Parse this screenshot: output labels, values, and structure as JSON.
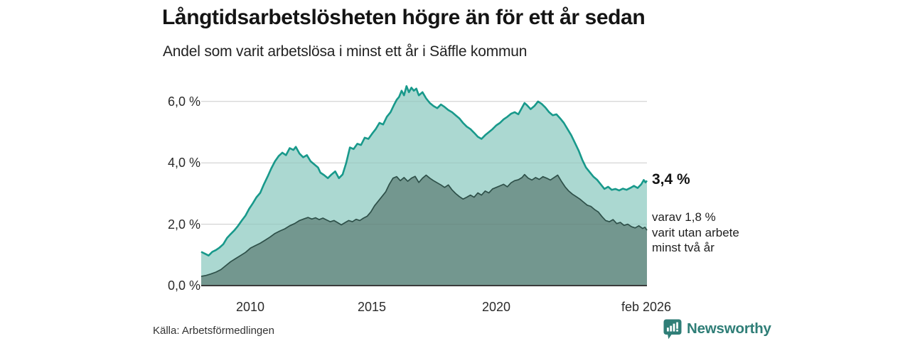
{
  "title": "Långtidsarbetslösheten högre än för ett år sedan",
  "subtitle": "Andel som varit arbetslösa i minst ett år i Säffle kommun",
  "source": "Källa: Arbetsförmedlingen",
  "branding": {
    "name": "Newsworthy",
    "icon": "newsworthy-speech-bubble-bar-chart-icon",
    "color": "#2f7e77"
  },
  "annotations": {
    "latest_value": "3,4 %",
    "secondary_lines": [
      "varav 1,8 %",
      "varit utan arbete",
      "minst två år"
    ]
  },
  "chart_data": {
    "type": "area",
    "title": "Långtidsarbetslösheten högre än för ett år sedan",
    "subtitle": "Andel som varit arbetslösa i minst ett år i Säffle kommun",
    "unit": "%",
    "grid": "horizontal",
    "legend_position": "none",
    "x_axis": {
      "domain": [
        2007.95,
        2026.08
      ],
      "tick_labels": [
        "2010",
        "2015",
        "2020",
        "feb 2026"
      ],
      "tick_years": [
        2010,
        2015,
        2020,
        2026.08
      ]
    },
    "y_axis": {
      "ylim": [
        0,
        6.6
      ],
      "tick_values": [
        0,
        2,
        4,
        6
      ],
      "tick_labels": [
        "0,0 %",
        "2,0 %",
        "4,0 %",
        "6,0 %"
      ]
    },
    "colors": {
      "outer_line": "#18998b",
      "outer_fill": "#abd8d1",
      "inner_line": "#2e5049",
      "inner_fill": "#73978f",
      "grid": "#dedede",
      "grid_overlay": "rgba(60,60,60,0.10)",
      "zero_axis": "#3b3b3b"
    },
    "series": [
      {
        "name": "Arbetslösa minst ett år",
        "latest_label": "3,4 %",
        "latest": 3.4,
        "points": [
          [
            2007.95,
            1.1
          ],
          [
            2008.1,
            1.04
          ],
          [
            2008.25,
            0.98
          ],
          [
            2008.4,
            1.1
          ],
          [
            2008.55,
            1.16
          ],
          [
            2008.7,
            1.24
          ],
          [
            2008.85,
            1.35
          ],
          [
            2009.0,
            1.55
          ],
          [
            2009.15,
            1.68
          ],
          [
            2009.3,
            1.8
          ],
          [
            2009.45,
            1.95
          ],
          [
            2009.6,
            2.12
          ],
          [
            2009.75,
            2.28
          ],
          [
            2009.9,
            2.5
          ],
          [
            2010.05,
            2.68
          ],
          [
            2010.2,
            2.88
          ],
          [
            2010.35,
            3.02
          ],
          [
            2010.5,
            3.3
          ],
          [
            2010.65,
            3.55
          ],
          [
            2010.8,
            3.82
          ],
          [
            2010.95,
            4.05
          ],
          [
            2011.1,
            4.22
          ],
          [
            2011.25,
            4.33
          ],
          [
            2011.4,
            4.25
          ],
          [
            2011.55,
            4.48
          ],
          [
            2011.7,
            4.42
          ],
          [
            2011.8,
            4.52
          ],
          [
            2011.95,
            4.3
          ],
          [
            2012.1,
            4.18
          ],
          [
            2012.25,
            4.25
          ],
          [
            2012.4,
            4.05
          ],
          [
            2012.55,
            3.95
          ],
          [
            2012.7,
            3.85
          ],
          [
            2012.8,
            3.68
          ],
          [
            2012.95,
            3.6
          ],
          [
            2013.1,
            3.5
          ],
          [
            2013.25,
            3.62
          ],
          [
            2013.4,
            3.72
          ],
          [
            2013.55,
            3.5
          ],
          [
            2013.7,
            3.62
          ],
          [
            2013.85,
            4.0
          ],
          [
            2014.0,
            4.5
          ],
          [
            2014.15,
            4.45
          ],
          [
            2014.3,
            4.62
          ],
          [
            2014.45,
            4.58
          ],
          [
            2014.6,
            4.82
          ],
          [
            2014.75,
            4.78
          ],
          [
            2014.9,
            4.95
          ],
          [
            2015.05,
            5.1
          ],
          [
            2015.2,
            5.3
          ],
          [
            2015.35,
            5.25
          ],
          [
            2015.5,
            5.5
          ],
          [
            2015.65,
            5.65
          ],
          [
            2015.8,
            5.9
          ],
          [
            2015.9,
            6.05
          ],
          [
            2016.0,
            6.15
          ],
          [
            2016.1,
            6.35
          ],
          [
            2016.2,
            6.2
          ],
          [
            2016.3,
            6.5
          ],
          [
            2016.4,
            6.3
          ],
          [
            2016.5,
            6.45
          ],
          [
            2016.6,
            6.35
          ],
          [
            2016.7,
            6.42
          ],
          [
            2016.8,
            6.2
          ],
          [
            2016.95,
            6.3
          ],
          [
            2017.1,
            6.1
          ],
          [
            2017.25,
            5.95
          ],
          [
            2017.4,
            5.85
          ],
          [
            2017.55,
            5.78
          ],
          [
            2017.7,
            5.9
          ],
          [
            2017.85,
            5.82
          ],
          [
            2018.0,
            5.72
          ],
          [
            2018.15,
            5.65
          ],
          [
            2018.3,
            5.55
          ],
          [
            2018.45,
            5.45
          ],
          [
            2018.6,
            5.3
          ],
          [
            2018.75,
            5.18
          ],
          [
            2018.9,
            5.1
          ],
          [
            2019.05,
            4.98
          ],
          [
            2019.2,
            4.85
          ],
          [
            2019.35,
            4.78
          ],
          [
            2019.5,
            4.9
          ],
          [
            2019.65,
            5.0
          ],
          [
            2019.8,
            5.1
          ],
          [
            2019.95,
            5.22
          ],
          [
            2020.1,
            5.3
          ],
          [
            2020.25,
            5.42
          ],
          [
            2020.4,
            5.5
          ],
          [
            2020.55,
            5.6
          ],
          [
            2020.7,
            5.65
          ],
          [
            2020.85,
            5.58
          ],
          [
            2021.0,
            5.8
          ],
          [
            2021.1,
            5.95
          ],
          [
            2021.2,
            5.88
          ],
          [
            2021.35,
            5.75
          ],
          [
            2021.5,
            5.85
          ],
          [
            2021.65,
            6.0
          ],
          [
            2021.8,
            5.92
          ],
          [
            2021.95,
            5.8
          ],
          [
            2022.1,
            5.65
          ],
          [
            2022.25,
            5.55
          ],
          [
            2022.4,
            5.58
          ],
          [
            2022.55,
            5.45
          ],
          [
            2022.7,
            5.3
          ],
          [
            2022.85,
            5.1
          ],
          [
            2023.0,
            4.9
          ],
          [
            2023.15,
            4.65
          ],
          [
            2023.3,
            4.4
          ],
          [
            2023.45,
            4.1
          ],
          [
            2023.6,
            3.85
          ],
          [
            2023.75,
            3.7
          ],
          [
            2023.9,
            3.55
          ],
          [
            2024.05,
            3.45
          ],
          [
            2024.2,
            3.3
          ],
          [
            2024.35,
            3.15
          ],
          [
            2024.5,
            3.22
          ],
          [
            2024.65,
            3.12
          ],
          [
            2024.8,
            3.15
          ],
          [
            2024.95,
            3.1
          ],
          [
            2025.1,
            3.16
          ],
          [
            2025.25,
            3.12
          ],
          [
            2025.4,
            3.18
          ],
          [
            2025.55,
            3.25
          ],
          [
            2025.7,
            3.18
          ],
          [
            2025.85,
            3.3
          ],
          [
            2025.95,
            3.44
          ],
          [
            2026.02,
            3.36
          ],
          [
            2026.08,
            3.42
          ]
        ]
      },
      {
        "name": "Varav utan arbete minst två år",
        "latest_label": "1,8 %",
        "latest": 1.8,
        "points": [
          [
            2007.95,
            0.3
          ],
          [
            2008.15,
            0.33
          ],
          [
            2008.35,
            0.38
          ],
          [
            2008.55,
            0.44
          ],
          [
            2008.75,
            0.52
          ],
          [
            2008.95,
            0.65
          ],
          [
            2009.15,
            0.78
          ],
          [
            2009.35,
            0.88
          ],
          [
            2009.55,
            0.98
          ],
          [
            2009.75,
            1.08
          ],
          [
            2009.95,
            1.22
          ],
          [
            2010.15,
            1.3
          ],
          [
            2010.35,
            1.38
          ],
          [
            2010.55,
            1.48
          ],
          [
            2010.75,
            1.58
          ],
          [
            2010.95,
            1.7
          ],
          [
            2011.15,
            1.78
          ],
          [
            2011.35,
            1.85
          ],
          [
            2011.55,
            1.95
          ],
          [
            2011.75,
            2.02
          ],
          [
            2011.95,
            2.12
          ],
          [
            2012.15,
            2.18
          ],
          [
            2012.3,
            2.22
          ],
          [
            2012.45,
            2.17
          ],
          [
            2012.6,
            2.21
          ],
          [
            2012.75,
            2.15
          ],
          [
            2012.9,
            2.2
          ],
          [
            2013.05,
            2.14
          ],
          [
            2013.2,
            2.08
          ],
          [
            2013.35,
            2.12
          ],
          [
            2013.5,
            2.05
          ],
          [
            2013.65,
            1.98
          ],
          [
            2013.8,
            2.05
          ],
          [
            2013.95,
            2.12
          ],
          [
            2014.1,
            2.08
          ],
          [
            2014.25,
            2.16
          ],
          [
            2014.4,
            2.12
          ],
          [
            2014.55,
            2.2
          ],
          [
            2014.7,
            2.26
          ],
          [
            2014.85,
            2.4
          ],
          [
            2015.0,
            2.6
          ],
          [
            2015.15,
            2.75
          ],
          [
            2015.3,
            2.9
          ],
          [
            2015.45,
            3.05
          ],
          [
            2015.6,
            3.3
          ],
          [
            2015.75,
            3.5
          ],
          [
            2015.9,
            3.55
          ],
          [
            2016.05,
            3.42
          ],
          [
            2016.2,
            3.52
          ],
          [
            2016.35,
            3.4
          ],
          [
            2016.5,
            3.5
          ],
          [
            2016.65,
            3.56
          ],
          [
            2016.8,
            3.36
          ],
          [
            2016.95,
            3.5
          ],
          [
            2017.1,
            3.6
          ],
          [
            2017.25,
            3.5
          ],
          [
            2017.4,
            3.42
          ],
          [
            2017.55,
            3.35
          ],
          [
            2017.7,
            3.28
          ],
          [
            2017.85,
            3.2
          ],
          [
            2018.0,
            3.28
          ],
          [
            2018.15,
            3.12
          ],
          [
            2018.3,
            3.0
          ],
          [
            2018.45,
            2.9
          ],
          [
            2018.6,
            2.82
          ],
          [
            2018.75,
            2.88
          ],
          [
            2018.9,
            2.95
          ],
          [
            2019.05,
            2.88
          ],
          [
            2019.2,
            3.02
          ],
          [
            2019.35,
            2.95
          ],
          [
            2019.5,
            3.08
          ],
          [
            2019.65,
            3.02
          ],
          [
            2019.8,
            3.15
          ],
          [
            2019.95,
            3.2
          ],
          [
            2020.1,
            3.25
          ],
          [
            2020.25,
            3.3
          ],
          [
            2020.4,
            3.22
          ],
          [
            2020.55,
            3.35
          ],
          [
            2020.7,
            3.42
          ],
          [
            2020.85,
            3.45
          ],
          [
            2021.0,
            3.52
          ],
          [
            2021.1,
            3.62
          ],
          [
            2021.25,
            3.5
          ],
          [
            2021.4,
            3.44
          ],
          [
            2021.55,
            3.52
          ],
          [
            2021.7,
            3.46
          ],
          [
            2021.85,
            3.55
          ],
          [
            2022.0,
            3.5
          ],
          [
            2022.15,
            3.44
          ],
          [
            2022.3,
            3.52
          ],
          [
            2022.45,
            3.6
          ],
          [
            2022.6,
            3.4
          ],
          [
            2022.75,
            3.22
          ],
          [
            2022.9,
            3.08
          ],
          [
            2023.05,
            2.98
          ],
          [
            2023.2,
            2.9
          ],
          [
            2023.35,
            2.82
          ],
          [
            2023.5,
            2.72
          ],
          [
            2023.65,
            2.62
          ],
          [
            2023.8,
            2.58
          ],
          [
            2023.95,
            2.48
          ],
          [
            2024.1,
            2.4
          ],
          [
            2024.25,
            2.25
          ],
          [
            2024.4,
            2.12
          ],
          [
            2024.55,
            2.08
          ],
          [
            2024.7,
            2.15
          ],
          [
            2024.85,
            2.02
          ],
          [
            2025.0,
            2.06
          ],
          [
            2025.15,
            1.96
          ],
          [
            2025.3,
            2.0
          ],
          [
            2025.45,
            1.92
          ],
          [
            2025.6,
            1.88
          ],
          [
            2025.75,
            1.95
          ],
          [
            2025.9,
            1.86
          ],
          [
            2026.0,
            1.9
          ],
          [
            2026.08,
            1.8
          ]
        ]
      }
    ]
  }
}
